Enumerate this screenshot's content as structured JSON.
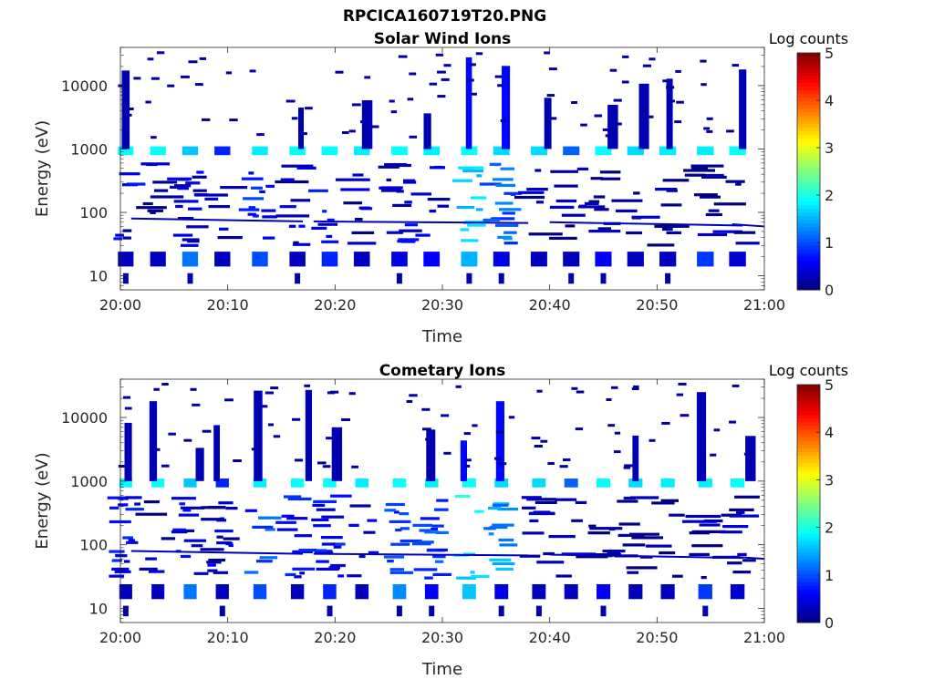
{
  "figure_title": "RPCICA160719T20.PNG",
  "colors": {
    "background": "#ffffff",
    "axis": "#262626",
    "colormap": "jet"
  },
  "chart_data": [
    {
      "type": "heatmap",
      "title": "Solar Wind Ions",
      "xlabel": "Time",
      "ylabel": "Energy (eV)",
      "x_ticks": [
        "20:00",
        "20:10",
        "20:20",
        "20:30",
        "20:40",
        "20:50",
        "21:00"
      ],
      "x_range": [
        "20:00",
        "21:00"
      ],
      "y_scale": "log",
      "y_ticks": [
        "10",
        "100",
        "1000",
        "10000"
      ],
      "y_range": [
        6,
        40000
      ],
      "colorbar": {
        "title": "Log counts",
        "range": [
          0,
          5
        ],
        "ticks": [
          "0",
          "1",
          "2",
          "3",
          "4",
          "5"
        ]
      },
      "sample_times": [
        "20:00.5",
        "20:03.5",
        "20:06.5",
        "20:09.5",
        "20:13.0",
        "20:16.5",
        "20:19.5",
        "20:22.5",
        "20:26.0",
        "20:29.0",
        "20:32.5",
        "20:35.5",
        "20:39.0",
        "20:42.0",
        "20:45.0",
        "20:48.0",
        "20:51.0",
        "20:54.5",
        "20:57.5"
      ],
      "band_levels": {
        "energy_10_to_25_eV": [
          0.3,
          0.3,
          1.2,
          0.3,
          1.0,
          0.3,
          0.8,
          0.3,
          0.5,
          0.6,
          1.5,
          0.5,
          0.3,
          0.3,
          0.6,
          0.3,
          0.3,
          0.9,
          0.4
        ],
        "energy_1000_eV": [
          1.9,
          1.9,
          1.6,
          0.8,
          1.8,
          1.9,
          1.9,
          1.8,
          1.9,
          1.8,
          1.9,
          1.7,
          1.7,
          1.1,
          1.9,
          1.7,
          1.8,
          1.8,
          1.9
        ],
        "energy_30_to_500_eV": [
          0.5,
          0.2,
          0.4,
          0.3,
          0.7,
          0.3,
          0.5,
          0.3,
          0.4,
          0.4,
          1.6,
          1.1,
          0.2,
          0.2,
          0.1,
          0.1,
          0.1,
          0.1,
          0.2
        ]
      }
    },
    {
      "type": "heatmap",
      "title": "Cometary Ions",
      "xlabel": "Time",
      "ylabel": "Energy (eV)",
      "x_ticks": [
        "20:00",
        "20:10",
        "20:20",
        "20:30",
        "20:40",
        "20:50",
        "21:00"
      ],
      "x_range": [
        "20:00",
        "21:00"
      ],
      "y_scale": "log",
      "y_ticks": [
        "10",
        "100",
        "1000",
        "10000"
      ],
      "y_range": [
        6,
        40000
      ],
      "colorbar": {
        "title": "Log counts",
        "range": [
          0,
          5
        ],
        "ticks": [
          "0",
          "1",
          "2",
          "3",
          "4",
          "5"
        ]
      },
      "sample_times": [
        "20:00.5",
        "20:03.5",
        "20:06.5",
        "20:09.5",
        "20:13.0",
        "20:16.5",
        "20:19.5",
        "20:22.5",
        "20:26.0",
        "20:29.0",
        "20:32.5",
        "20:35.5",
        "20:39.0",
        "20:42.0",
        "20:45.0",
        "20:48.0",
        "20:51.0",
        "20:54.5",
        "20:57.5"
      ],
      "band_levels": {
        "energy_10_to_25_eV": [
          0.3,
          0.3,
          1.2,
          0.3,
          1.0,
          0.3,
          0.8,
          0.3,
          1.3,
          0.6,
          1.6,
          0.5,
          0.3,
          0.3,
          0.6,
          0.3,
          0.3,
          0.9,
          0.4
        ],
        "energy_1000_eV": [
          1.9,
          1.9,
          1.6,
          0.8,
          1.8,
          1.9,
          1.9,
          1.8,
          1.9,
          1.8,
          1.9,
          1.7,
          1.7,
          1.1,
          1.9,
          1.7,
          1.8,
          1.8,
          1.9
        ],
        "energy_30_to_500_eV": [
          0.6,
          0.3,
          0.5,
          0.4,
          0.9,
          0.6,
          0.6,
          0.4,
          0.8,
          0.9,
          1.8,
          1.4,
          0.2,
          0.2,
          0.1,
          0.1,
          0.1,
          0.1,
          0.2
        ]
      }
    }
  ]
}
